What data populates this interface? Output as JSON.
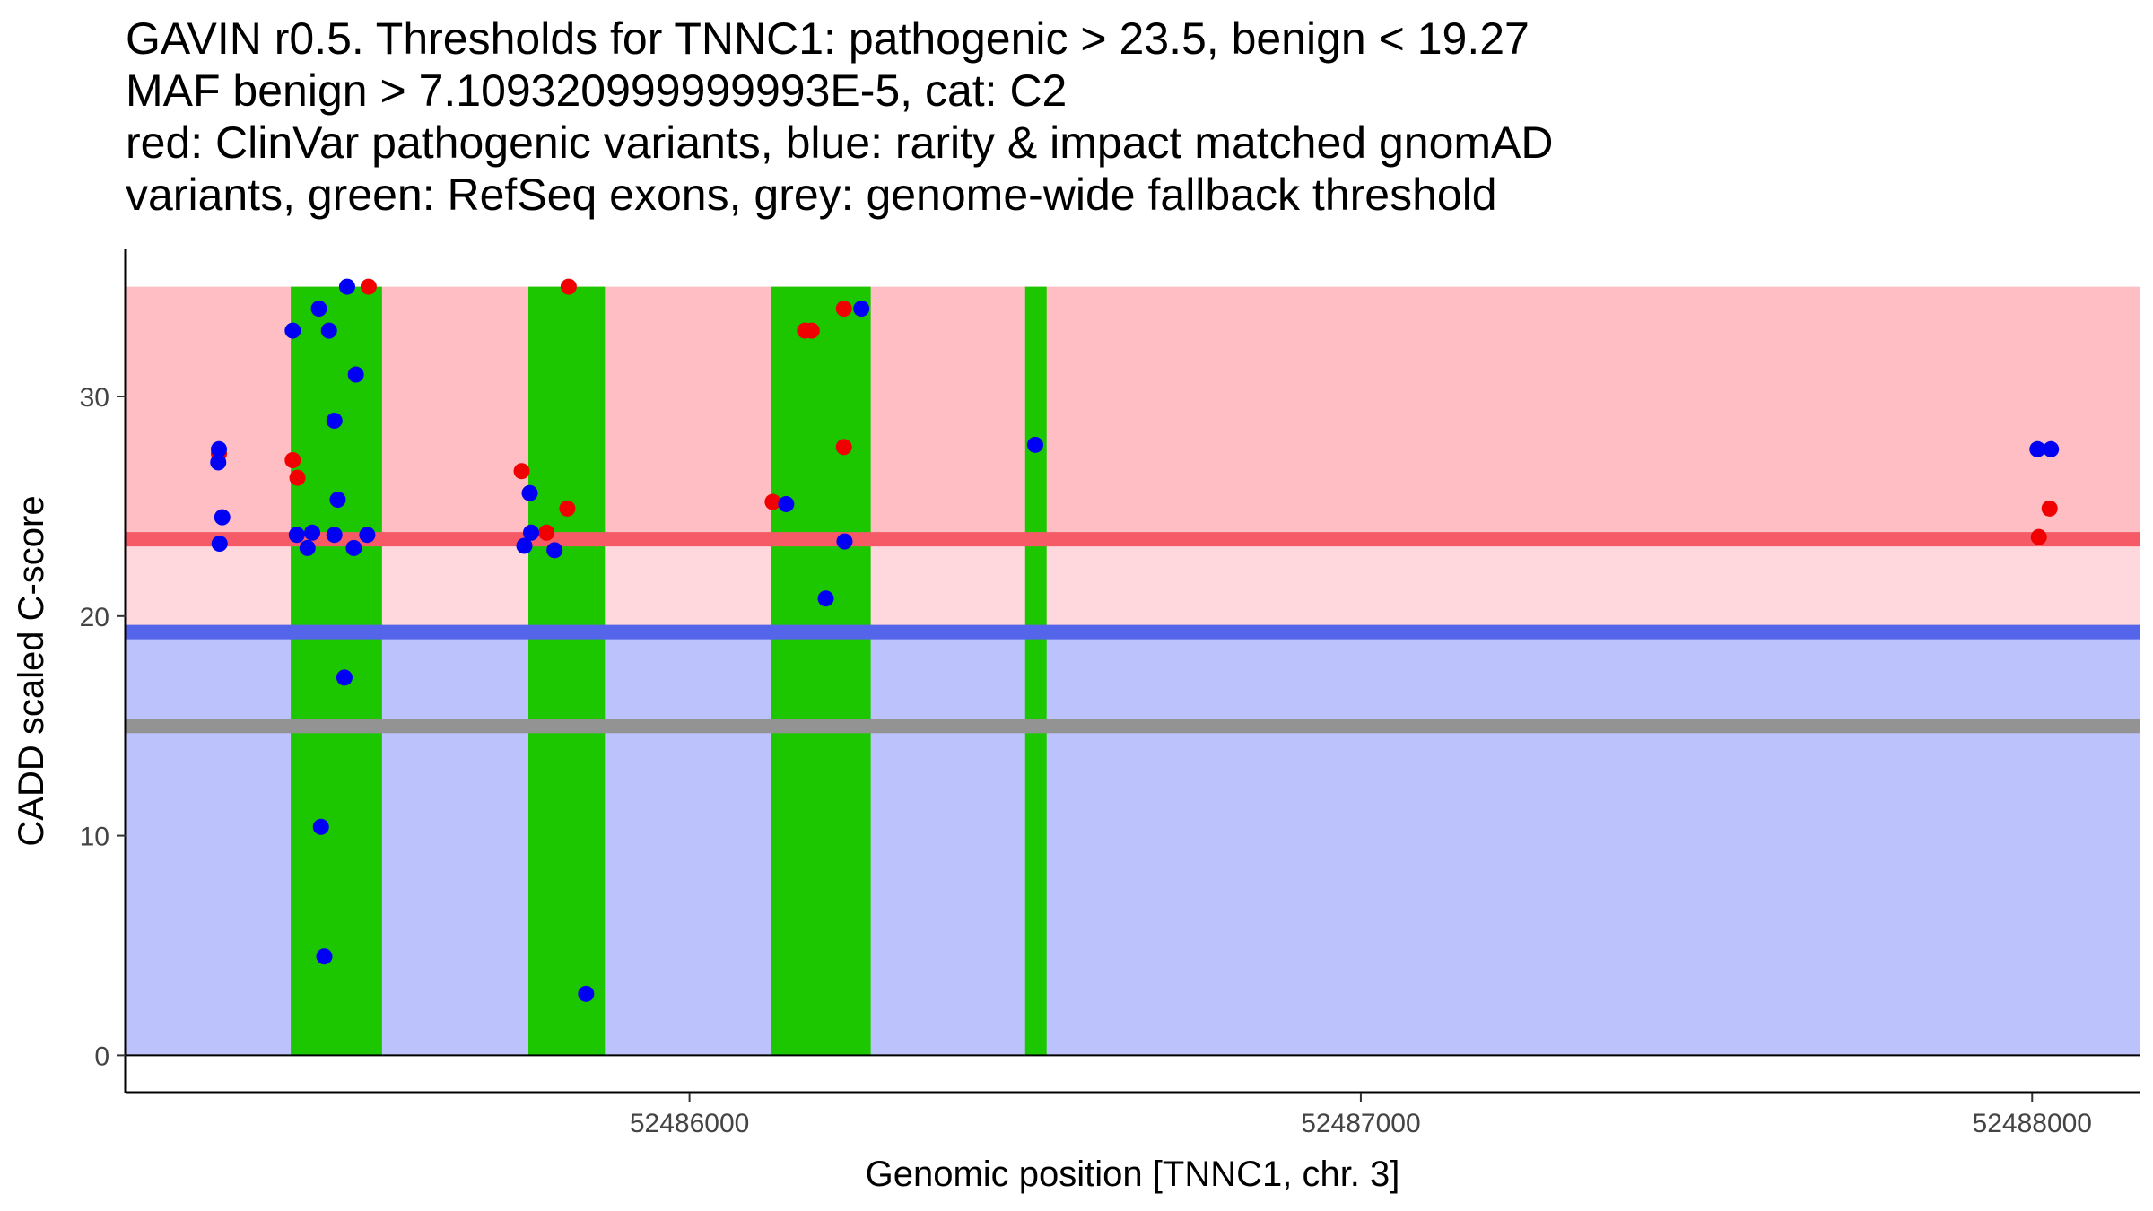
{
  "title": {
    "line1": "GAVIN r0.5. Thresholds for TNNC1: pathogenic > 23.5, benign < 19.27",
    "line2": "MAF benign > 7.109320999999993E-5, cat: C2",
    "line3": "red: ClinVar pathogenic variants, blue: rarity & impact matched gnomAD",
    "line4": "variants, green: RefSeq exons, grey: genome-wide fallback threshold"
  },
  "colors": {
    "pathogenic_band": "#ffbdc4",
    "middle_band": "#ffd8dd",
    "benign_band": "#bcc2fb",
    "pathogenic_line": "#f55a66",
    "benign_line": "#5465ea",
    "fallback_line": "#939393",
    "exon": "#1cc700",
    "clinvar_point": "#f00000",
    "gnomad_point": "#0000f5"
  },
  "chart_data": {
    "type": "scatter",
    "xlabel": "Genomic position [TNNC1, chr. 3]",
    "ylabel": "CADD scaled C-score",
    "xlim": [
      52485160,
      52488160
    ],
    "ylim": [
      -1.7,
      36.7
    ],
    "xticks": [
      52486000,
      52487000,
      52488000
    ],
    "xtick_labels": [
      "52486000",
      "52487000",
      "52488000"
    ],
    "yticks": [
      0,
      10,
      20,
      30
    ],
    "ytick_labels": [
      "0",
      "10",
      "20",
      "30"
    ],
    "score_max": 35,
    "thresholds": {
      "pathogenic": 23.5,
      "benign": 19.27,
      "fallback": 15
    },
    "exons": [
      [
        52485406,
        52485542
      ],
      [
        52485760,
        52485874
      ],
      [
        52486122,
        52486270
      ],
      [
        52486500,
        52486532
      ]
    ],
    "series": [
      {
        "name": "ClinVar pathogenic",
        "color_key": "clinvar_point",
        "x": [
          52485299,
          52485409,
          52485416,
          52485522,
          52485750,
          52485787,
          52485818,
          52485820,
          52486124,
          52486172,
          52486182,
          52486230,
          52486230,
          52488010,
          52488026
        ],
        "y": [
          27.4,
          27.1,
          26.3,
          35,
          26.6,
          23.8,
          24.9,
          35,
          25.2,
          33,
          33,
          34,
          27.7,
          23.6,
          24.9
        ]
      },
      {
        "name": "gnomAD matched",
        "color_key": "gnomad_point",
        "x": [
          52485298,
          52485299,
          52485304,
          52485300,
          52485409,
          52485415,
          52485431,
          52485438,
          52485448,
          52485451,
          52485456,
          52485463,
          52485471,
          52485471,
          52485476,
          52485486,
          52485490,
          52485500,
          52485503,
          52485520,
          52485754,
          52485762,
          52485764,
          52485799,
          52485846,
          52486144,
          52486203,
          52486231,
          52486256,
          52486515,
          52488008,
          52488028
        ],
        "y": [
          27,
          27.6,
          24.5,
          23.3,
          33,
          23.7,
          23.1,
          23.8,
          34,
          10.4,
          4.5,
          33,
          28.9,
          23.7,
          25.3,
          17.2,
          35,
          23.1,
          31,
          23.7,
          23.2,
          25.6,
          23.8,
          23,
          2.8,
          25.1,
          20.8,
          23.4,
          34,
          27.8,
          27.6,
          27.6
        ]
      }
    ]
  }
}
